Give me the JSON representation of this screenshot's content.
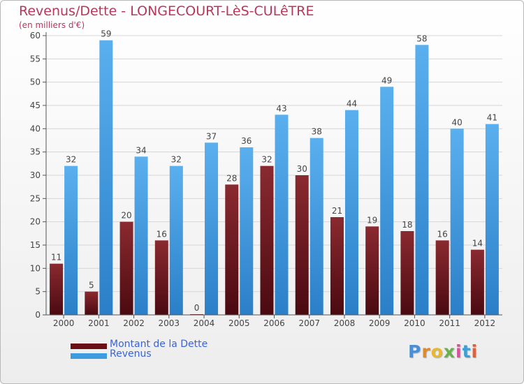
{
  "title": "Revenus/Dette - LONGECOURT-LèS-CULêTRE",
  "subtitle": "(en milliers d'€)",
  "logo_text": "Proxiti",
  "colors": {
    "debt": "#7a1820",
    "revenue": "#3d9ce0",
    "title": "#b8365b",
    "legend_text": "#3b63d6"
  },
  "chart_data": {
    "type": "bar",
    "categories": [
      "2000",
      "2001",
      "2002",
      "2003",
      "2004",
      "2005",
      "2006",
      "2007",
      "2008",
      "2009",
      "2010",
      "2011",
      "2012"
    ],
    "series": [
      {
        "name": "Montant de la Dette",
        "values": [
          11,
          5,
          20,
          16,
          0,
          28,
          32,
          30,
          21,
          19,
          18,
          16,
          14
        ]
      },
      {
        "name": "Revenus",
        "values": [
          32,
          59,
          34,
          32,
          37,
          36,
          43,
          38,
          44,
          49,
          58,
          40,
          41
        ]
      }
    ],
    "ylim": [
      0,
      60
    ],
    "yticks": [
      0,
      5,
      10,
      15,
      20,
      25,
      30,
      35,
      40,
      45,
      50,
      55,
      60
    ],
    "grid": true,
    "legend_position": "bottom-left"
  }
}
